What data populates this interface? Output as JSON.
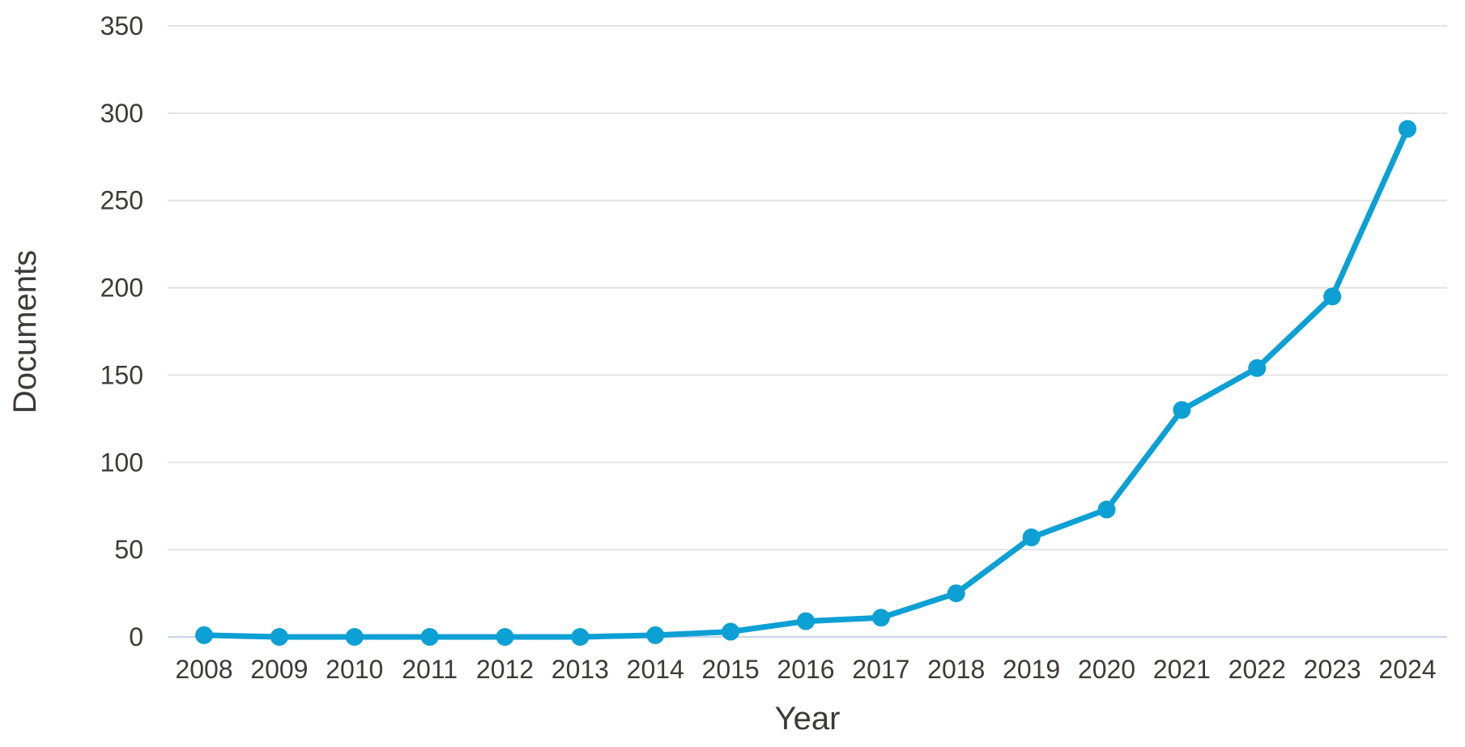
{
  "chart_data": {
    "type": "line",
    "title": "",
    "xlabel": "Year",
    "ylabel": "Documents",
    "categories": [
      "2008",
      "2009",
      "2010",
      "2011",
      "2012",
      "2013",
      "2014",
      "2015",
      "2016",
      "2017",
      "2018",
      "2019",
      "2020",
      "2021",
      "2022",
      "2023",
      "2024"
    ],
    "series_name": "Documents",
    "values": [
      1,
      0,
      0,
      0,
      0,
      0,
      1,
      3,
      9,
      11,
      25,
      57,
      73,
      130,
      154,
      195,
      291
    ],
    "ylim": [
      0,
      350
    ],
    "yticks": [
      0,
      50,
      100,
      150,
      200,
      250,
      300,
      350
    ],
    "grid": true,
    "legend": false,
    "colors": {
      "line": "#0da0d4",
      "marker": "#0da0d4",
      "gridline": "#e3e3e3",
      "zero_line": "#c9d4e8",
      "text": "#3d3a38",
      "background": "#ffffff"
    }
  }
}
